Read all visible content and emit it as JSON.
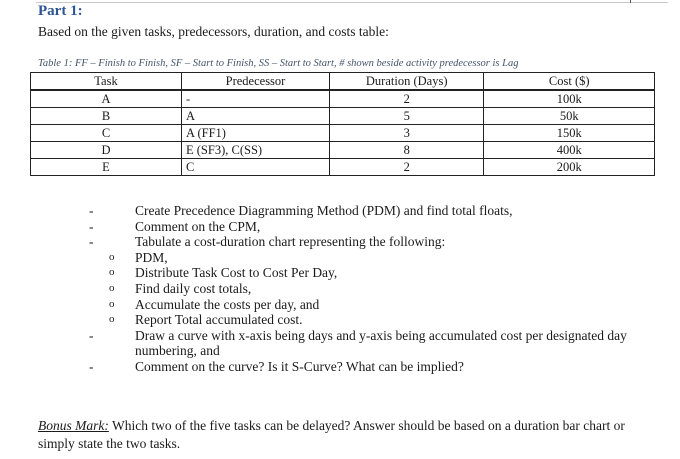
{
  "heading": "Part 1:",
  "intro": "Based on the given tasks, predecessors, duration, and costs table:",
  "table": {
    "caption": "Table 1: FF – Finish to Finish, SF – Start to Finish, SS – Start to Start, # shown beside activity predecessor is Lag",
    "headers": [
      "Task",
      "Predecessor",
      "Duration (Days)",
      "Cost ($)"
    ],
    "rows": [
      [
        "A",
        "-",
        "2",
        "100k"
      ],
      [
        "B",
        "A",
        "5",
        "50k"
      ],
      [
        "C",
        "A (FF1)",
        "3",
        "150k"
      ],
      [
        "D",
        "E (SF3), C(SS)",
        "8",
        "400k"
      ],
      [
        "E",
        "C",
        "2",
        "200k"
      ]
    ]
  },
  "instructions": [
    {
      "marker": "-",
      "text": "Create Precedence Diagramming Method (PDM) and find total floats,"
    },
    {
      "marker": "-",
      "text": "Comment on the CPM,"
    },
    {
      "marker": "-",
      "text": "Tabulate a cost-duration chart representing the following:"
    },
    {
      "marker": "o",
      "text": "PDM,"
    },
    {
      "marker": "o",
      "text": "Distribute Task Cost to Cost Per Day,"
    },
    {
      "marker": "o",
      "text": "Find daily cost totals,"
    },
    {
      "marker": "o",
      "text": "Accumulate the costs per day, and"
    },
    {
      "marker": "o",
      "text": "Report Total accumulated cost."
    },
    {
      "marker": "-",
      "text": "Draw a curve with x-axis being days and y-axis being accumulated cost per designated day numbering, and"
    },
    {
      "marker": "-",
      "text": "Comment on the curve? Is it S-Curve? What can be implied?"
    }
  ],
  "bonus": {
    "label": "Bonus Mark:",
    "text": "Which two of the five tasks can be delayed? Answer should be based on a duration bar chart or simply state the two tasks."
  }
}
